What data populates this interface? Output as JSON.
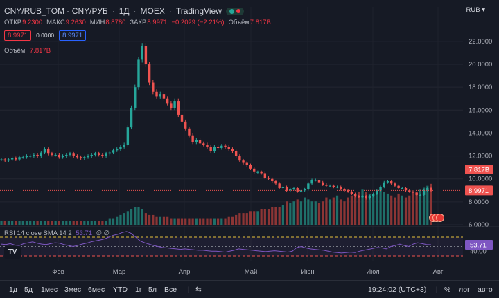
{
  "header": {
    "symbol": "CNY/RUB_TOM - CNY/РУБ",
    "interval": "1Д",
    "exchange": "MOEX",
    "source": "TradingView",
    "status_color": "#26a69a",
    "currency": "RUB"
  },
  "ohlc": {
    "open_label": "ОТКР",
    "open": "9.2300",
    "high_label": "МАКС",
    "high": "9.2630",
    "low_label": "МИН",
    "low": "8.8780",
    "close_label": "ЗАКР",
    "close": "8.9971",
    "change": "−0.2029 (−2.21%)",
    "vol_label": "Объём",
    "vol": "7.817B"
  },
  "quote_boxes": {
    "sell": "8.9971",
    "spread": "0.0000",
    "buy": "8.9971"
  },
  "volume_legend": {
    "label": "Объём",
    "value": "7.817B"
  },
  "rsi_legend": {
    "label": "RSI 14 close SMA 14 2",
    "value": "53.71",
    "extra": "∅ ∅"
  },
  "colors": {
    "up": "#26a69a",
    "down": "#ef5350",
    "vol_up": "#1f6f69",
    "vol_down": "#8c3535",
    "rsi": "#7e57c2",
    "bg": "#161a25"
  },
  "price_tags": {
    "last_price": "8.9971",
    "volume": "7.817B",
    "rsi": "53.71"
  },
  "timeframes": [
    "1д",
    "5д",
    "1мес",
    "3мес",
    "6мес",
    "YTD",
    "1г",
    "5л",
    "Все"
  ],
  "footer": {
    "clock": "19:24:02 (UTC+3)",
    "percent": "%",
    "log": "лог",
    "auto": "авто"
  },
  "chart_data": {
    "type": "candlestick",
    "y_ticks": [
      "22.0000",
      "20.0000",
      "18.0000",
      "16.0000",
      "14.0000",
      "12.0000",
      "10.0000",
      "8.0000",
      "6.0000"
    ],
    "ylim": [
      6,
      23.2
    ],
    "x_ticks": [
      "Фев",
      "Мар",
      "Апр",
      "Май",
      "Июн",
      "Июл",
      "Авг"
    ],
    "close_series": [
      11.7,
      11.6,
      11.7,
      11.8,
      11.7,
      11.9,
      11.9,
      12.0,
      12.0,
      12.1,
      12.0,
      12.3,
      12.6,
      12.2,
      12.1,
      12.1,
      11.9,
      12.0,
      12.1,
      12.2,
      12.0,
      11.9,
      11.8,
      11.9,
      12.0,
      12.1,
      12.2,
      12.1,
      12.0,
      12.2,
      12.3,
      12.5,
      12.6,
      12.8,
      13.0,
      14.5,
      16.2,
      18.0,
      20.4,
      21.6,
      20.0,
      18.4,
      17.6,
      17.2,
      17.4,
      17.0,
      16.6,
      16.2,
      16.8,
      15.6,
      15.0,
      14.4,
      13.8,
      13.2,
      13.4,
      13.1,
      13.0,
      12.8,
      12.4,
      12.8,
      12.7,
      12.9,
      12.8,
      12.6,
      12.4,
      12.0,
      11.6,
      11.4,
      11.2,
      10.9,
      10.6,
      10.6,
      10.5,
      10.1,
      10.0,
      9.8,
      9.6,
      9.2,
      9.3,
      9.0,
      9.1,
      9.2,
      8.9,
      9.0,
      9.1,
      9.6,
      9.9,
      9.9,
      9.7,
      9.5,
      9.4,
      9.4,
      9.3,
      9.3,
      9.1,
      9.0,
      8.9,
      8.7,
      8.5,
      8.4,
      8.5,
      8.3,
      8.5,
      8.7,
      9.0,
      9.3,
      9.7,
      9.8,
      9.6,
      9.4,
      9.2,
      9.2,
      9.0,
      8.9,
      8.8,
      8.6,
      8.6,
      9.0,
      9.2,
      8.9971
    ],
    "volume_series": [
      2,
      2,
      2,
      2,
      2,
      2,
      2,
      2,
      2,
      2,
      2,
      2,
      2,
      2,
      2,
      2,
      2,
      2,
      2,
      2,
      2,
      2,
      2,
      2,
      2,
      2,
      2,
      2,
      2,
      2,
      3,
      3,
      4,
      5,
      6,
      7,
      8,
      9,
      9,
      8,
      6,
      5,
      5,
      4,
      4,
      4,
      4,
      3,
      3,
      3,
      3,
      3,
      3,
      3,
      3,
      3,
      3,
      3,
      3,
      3,
      3,
      3,
      3,
      4,
      4,
      5,
      6,
      6,
      6,
      7,
      7,
      7,
      8,
      8,
      8,
      9,
      9,
      9,
      10,
      12,
      11,
      12,
      13,
      12,
      14,
      13,
      12,
      12,
      11,
      12,
      14,
      13,
      14,
      15,
      13,
      12,
      14,
      15,
      16,
      17,
      18,
      17,
      16,
      15,
      17,
      18,
      17,
      16,
      15,
      14,
      16,
      15,
      14,
      15,
      16,
      17,
      18,
      19,
      20,
      21
    ],
    "volume_last": 7.817,
    "rsi_series": [
      55,
      54,
      56,
      53,
      52,
      56,
      58,
      60,
      57,
      55,
      54,
      56,
      58,
      57,
      54,
      52,
      50,
      52,
      55,
      57,
      60,
      62,
      64,
      66,
      70,
      74,
      76,
      80,
      82,
      78,
      70,
      62,
      58,
      55,
      52,
      50,
      48,
      47,
      46,
      45,
      44,
      45,
      44,
      43,
      42,
      42,
      41,
      40,
      40,
      39,
      38,
      40,
      42,
      45,
      44,
      43,
      42,
      41,
      40,
      39,
      40,
      41,
      40,
      39,
      38,
      40,
      48,
      50,
      47,
      45,
      44,
      43,
      42,
      40,
      38,
      37,
      36,
      37,
      38,
      37,
      40,
      42,
      44,
      46,
      48,
      47,
      45,
      50,
      52,
      55,
      52,
      50,
      55,
      58,
      56,
      54,
      53.71
    ],
    "rsi_bands": [
      70,
      50,
      30
    ],
    "rsi_y_tick": "40.00"
  }
}
